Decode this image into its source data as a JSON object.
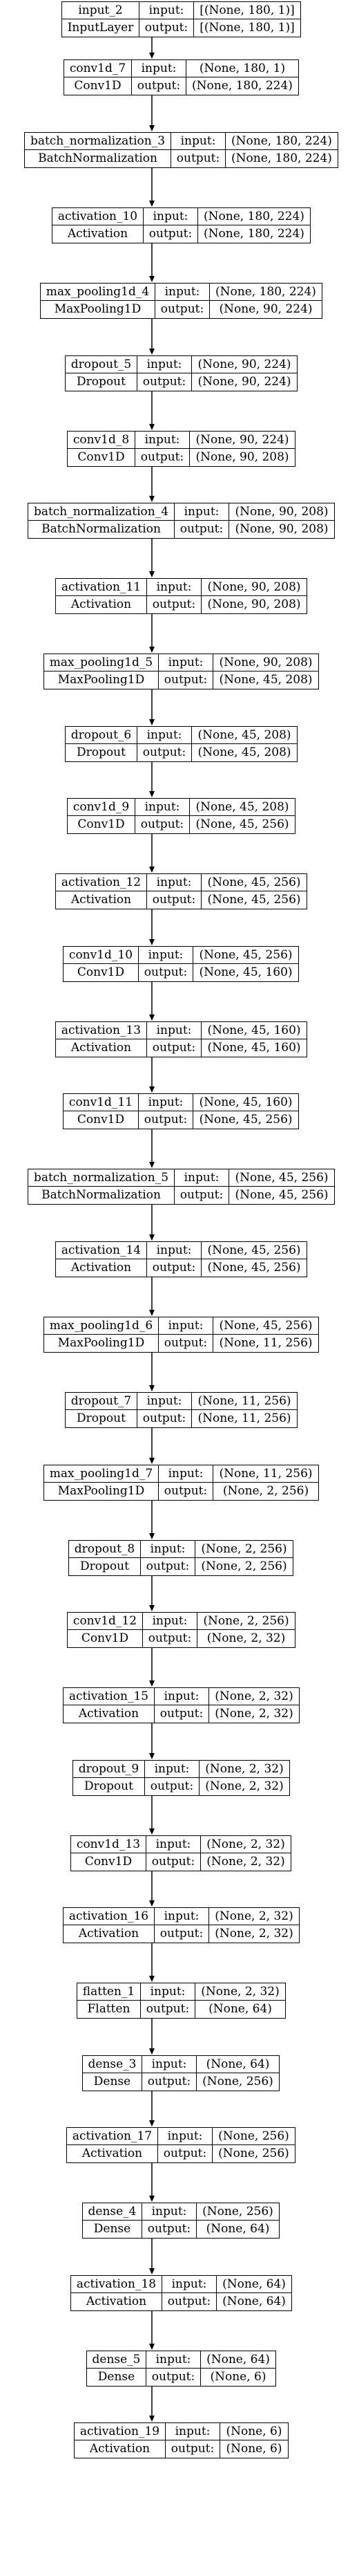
{
  "diagram": {
    "input_label": "input:",
    "output_label": "output:",
    "layers": [
      {
        "name": "input_2",
        "type": "InputLayer",
        "input": "[(None, 180, 1)]",
        "output": "[(None, 180, 1)]"
      },
      {
        "name": "conv1d_7",
        "type": "Conv1D",
        "input": "(None, 180, 1)",
        "output": "(None, 180, 224)"
      },
      {
        "name": "batch_normalization_3",
        "type": "BatchNormalization",
        "input": "(None, 180, 224)",
        "output": "(None, 180, 224)"
      },
      {
        "name": "activation_10",
        "type": "Activation",
        "input": "(None, 180, 224)",
        "output": "(None, 180, 224)"
      },
      {
        "name": "max_pooling1d_4",
        "type": "MaxPooling1D",
        "input": "(None, 180, 224)",
        "output": "(None, 90, 224)"
      },
      {
        "name": "dropout_5",
        "type": "Dropout",
        "input": "(None, 90, 224)",
        "output": "(None, 90, 224)"
      },
      {
        "name": "conv1d_8",
        "type": "Conv1D",
        "input": "(None, 90, 224)",
        "output": "(None, 90, 208)"
      },
      {
        "name": "batch_normalization_4",
        "type": "BatchNormalization",
        "input": "(None, 90, 208)",
        "output": "(None, 90, 208)"
      },
      {
        "name": "activation_11",
        "type": "Activation",
        "input": "(None, 90, 208)",
        "output": "(None, 90, 208)"
      },
      {
        "name": "max_pooling1d_5",
        "type": "MaxPooling1D",
        "input": "(None, 90, 208)",
        "output": "(None, 45, 208)"
      },
      {
        "name": "dropout_6",
        "type": "Dropout",
        "input": "(None, 45, 208)",
        "output": "(None, 45, 208)"
      },
      {
        "name": "conv1d_9",
        "type": "Conv1D",
        "input": "(None, 45, 208)",
        "output": "(None, 45, 256)"
      },
      {
        "name": "activation_12",
        "type": "Activation",
        "input": "(None, 45, 256)",
        "output": "(None, 45, 256)"
      },
      {
        "name": "conv1d_10",
        "type": "Conv1D",
        "input": "(None, 45, 256)",
        "output": "(None, 45, 160)"
      },
      {
        "name": "activation_13",
        "type": "Activation",
        "input": "(None, 45, 160)",
        "output": "(None, 45, 160)"
      },
      {
        "name": "conv1d_11",
        "type": "Conv1D",
        "input": "(None, 45, 160)",
        "output": "(None, 45, 256)"
      },
      {
        "name": "batch_normalization_5",
        "type": "BatchNormalization",
        "input": "(None, 45, 256)",
        "output": "(None, 45, 256)"
      },
      {
        "name": "activation_14",
        "type": "Activation",
        "input": "(None, 45, 256)",
        "output": "(None, 45, 256)"
      },
      {
        "name": "max_pooling1d_6",
        "type": "MaxPooling1D",
        "input": "(None, 45, 256)",
        "output": "(None, 11, 256)"
      },
      {
        "name": "dropout_7",
        "type": "Dropout",
        "input": "(None, 11, 256)",
        "output": "(None, 11, 256)"
      },
      {
        "name": "max_pooling1d_7",
        "type": "MaxPooling1D",
        "input": "(None, 11, 256)",
        "output": "(None, 2, 256)"
      },
      {
        "name": "dropout_8",
        "type": "Dropout",
        "input": "(None, 2, 256)",
        "output": "(None, 2, 256)"
      },
      {
        "name": "conv1d_12",
        "type": "Conv1D",
        "input": "(None, 2, 256)",
        "output": "(None, 2, 32)"
      },
      {
        "name": "activation_15",
        "type": "Activation",
        "input": "(None, 2, 32)",
        "output": "(None, 2, 32)"
      },
      {
        "name": "dropout_9",
        "type": "Dropout",
        "input": "(None, 2, 32)",
        "output": "(None, 2, 32)"
      },
      {
        "name": "conv1d_13",
        "type": "Conv1D",
        "input": "(None, 2, 32)",
        "output": "(None, 2, 32)"
      },
      {
        "name": "activation_16",
        "type": "Activation",
        "input": "(None, 2, 32)",
        "output": "(None, 2, 32)"
      },
      {
        "name": "flatten_1",
        "type": "Flatten",
        "input": "(None, 2, 32)",
        "output": "(None, 64)"
      },
      {
        "name": "dense_3",
        "type": "Dense",
        "input": "(None, 64)",
        "output": "(None, 256)"
      },
      {
        "name": "activation_17",
        "type": "Activation",
        "input": "(None, 256)",
        "output": "(None, 256)"
      },
      {
        "name": "dense_4",
        "type": "Dense",
        "input": "(None, 256)",
        "output": "(None, 64)"
      },
      {
        "name": "activation_18",
        "type": "Activation",
        "input": "(None, 64)",
        "output": "(None, 64)"
      },
      {
        "name": "dense_5",
        "type": "Dense",
        "input": "(None, 64)",
        "output": "(None, 6)"
      },
      {
        "name": "activation_19",
        "type": "Activation",
        "input": "(None, 6)",
        "output": "(None, 6)"
      }
    ]
  }
}
